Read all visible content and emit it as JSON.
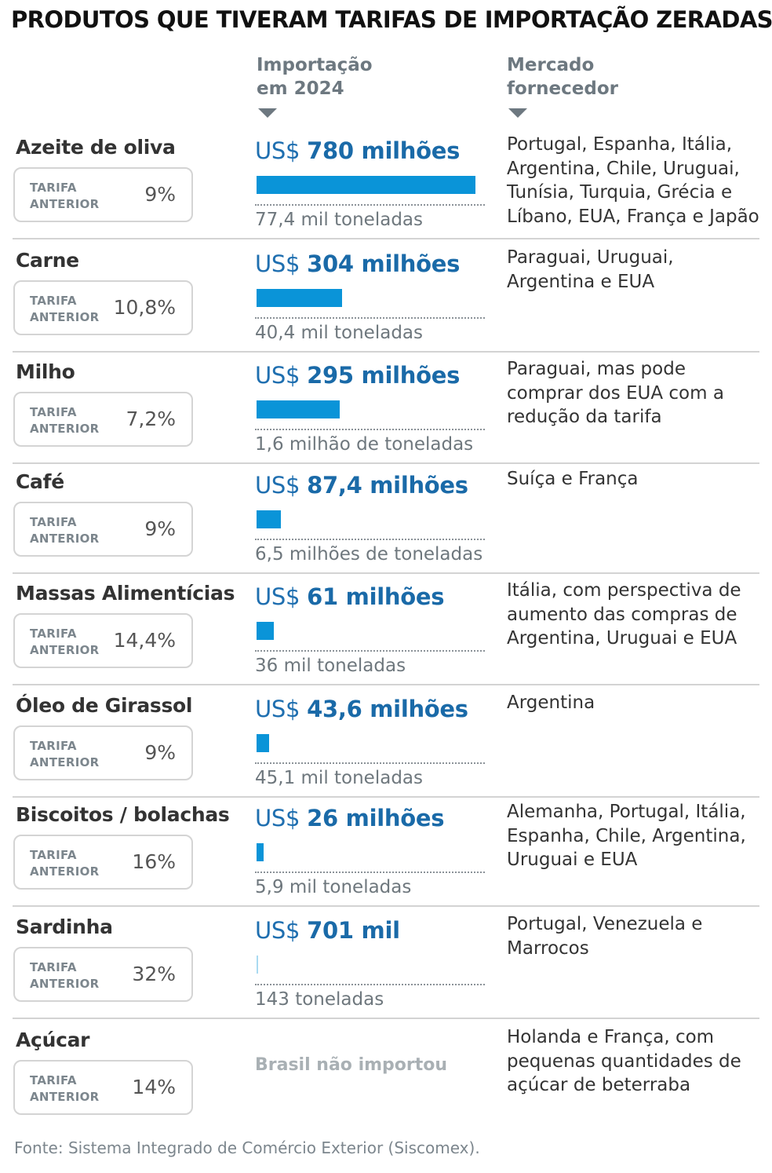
{
  "title": "PRODUTOS QUE TIVERAM TARIFAS DE IMPORTAÇÃO ZERADAS",
  "columns": {
    "import_line1": "Importação",
    "import_line2": "em 2024",
    "market_line1": "Mercado",
    "market_line2": "fornecedor"
  },
  "tariff_label_line1": "TARIFA",
  "tariff_label_line2": "ANTERIOR",
  "colors": {
    "bar": "#0a94d8",
    "value_text": "#1a6aa8",
    "muted": "#6e777d"
  },
  "chart_data": {
    "type": "bar",
    "unit": "US$ milhões",
    "categories": [
      "Azeite de oliva",
      "Carne",
      "Milho",
      "Café",
      "Massas Alimentícias",
      "Óleo de Girassol",
      "Biscoitos / bolachas",
      "Sardinha",
      "Açúcar"
    ],
    "values": [
      780,
      304,
      295,
      87.4,
      61,
      43.6,
      26,
      0.701,
      0
    ],
    "xlim": [
      0,
      780
    ]
  },
  "products": [
    {
      "name": "Azeite de oliva",
      "tariff": "9%",
      "value_prefix": "US$ ",
      "value_bold": "780 milhões",
      "volume": "77,4 mil toneladas",
      "market": "Portugal, Espanha, Itália, Argentina, Chile, Uruguai, Tunísia, Turquia, Grécia e Líbano, EUA, França e Japão"
    },
    {
      "name": "Carne",
      "tariff": "10,8%",
      "value_prefix": "US$ ",
      "value_bold": "304 milhões",
      "volume": "40,4 mil toneladas",
      "market": "Paraguai, Uruguai, Argentina e EUA"
    },
    {
      "name": "Milho",
      "tariff": "7,2%",
      "value_prefix": "US$ ",
      "value_bold": "295 milhões",
      "volume": "1,6 milhão de toneladas",
      "market": "Paraguai, mas pode comprar dos EUA com a redução da tarifa"
    },
    {
      "name": "Café",
      "tariff": "9%",
      "value_prefix": "US$ ",
      "value_bold": "87,4 milhões",
      "volume": "6,5 milhões de toneladas",
      "market": "Suíça e França"
    },
    {
      "name": "Massas Alimentícias",
      "tariff": "14,4%",
      "value_prefix": "US$ ",
      "value_bold": "61 milhões",
      "volume": "36 mil toneladas",
      "market": "Itália, com perspectiva de aumento das compras de Argentina, Uruguai e EUA"
    },
    {
      "name": "Óleo de Girassol",
      "tariff": "9%",
      "value_prefix": "US$ ",
      "value_bold": "43,6 milhões",
      "volume": "45,1 mil toneladas",
      "market": "Argentina"
    },
    {
      "name": "Biscoitos / bolachas",
      "tariff": "16%",
      "value_prefix": "US$ ",
      "value_bold": "26 milhões",
      "volume": "5,9 mil toneladas",
      "market": "Alemanha, Portugal, Itália, Espanha, Chile, Argentina, Uruguai e EUA"
    },
    {
      "name": "Sardinha",
      "tariff": "32%",
      "value_prefix": "US$ ",
      "value_bold": "701 mil",
      "volume": "143 toneladas",
      "market": "Portugal, Venezuela e Marrocos"
    },
    {
      "name": "Açúcar",
      "tariff": "14%",
      "no_import": "Brasil não importou",
      "market": "Holanda e França, com pequenas quantidades de açúcar de beterraba"
    }
  ],
  "source": "Fonte: Sistema Integrado de Comércio Exterior (Siscomex)."
}
